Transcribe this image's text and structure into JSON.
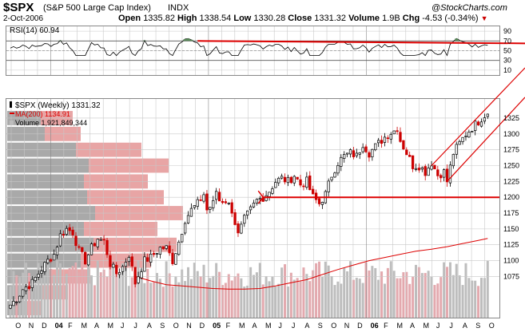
{
  "header": {
    "symbol": "$SPX",
    "name": "(S&P 500 Large Cap Index)",
    "exchange": "INDX",
    "brand": "@StockCharts.com",
    "date": "2-Oct-2006",
    "open_label": "Open",
    "open": "1335.82",
    "high_label": "High",
    "high": "1338.54",
    "low_label": "Low",
    "low": "1330.28",
    "close_label": "Close",
    "close": "1331.32",
    "volume_label": "Volume",
    "volume": "1.9B",
    "chg_label": "Chg",
    "chg": "-4.53 (-0.34%)"
  },
  "colors": {
    "red": "#dd0000",
    "up_candle": "#000000",
    "down_candle": "#cc0000",
    "grid": "#c8c8c8",
    "vbp_up": "#a9a9a9",
    "vbp_down": "#e8a5a5",
    "vol_up": "#bdbdbd",
    "vol_down": "#e3a9ae",
    "rsi_fill": "#5a8a5a"
  },
  "chart_data": [
    {
      "type": "line",
      "panel": "RSI",
      "legend": "RSI(14) 60.94",
      "ylim": [
        0,
        100
      ],
      "y_ticks": [
        10,
        30,
        50,
        70,
        90
      ],
      "reference_lines": [
        30,
        70
      ],
      "trendline": {
        "start_week": 60,
        "start": 70,
        "end_week": 155,
        "end": 65
      },
      "series": [
        {
          "name": "RSI(14)",
          "last": 60.94
        }
      ]
    },
    {
      "type": "line",
      "panel": "Price",
      "legend": [
        "$SPX (Weekly) 1331.32",
        "MA(200) 1134.91",
        "Volume 1,921,849,344"
      ],
      "y_ticks": [
        1075,
        1100,
        1125,
        1150,
        1175,
        1200,
        1225,
        1250,
        1275,
        1300,
        1325
      ],
      "ylim": [
        1010,
        1340
      ],
      "x_months": [
        "O",
        "N",
        "D",
        "04",
        "F",
        "M",
        "A",
        "M",
        "J",
        "J",
        "A",
        "S",
        "O",
        "N",
        "D",
        "05",
        "F",
        "M",
        "A",
        "M",
        "J",
        "J",
        "A",
        "S",
        "O",
        "N",
        "D",
        "06",
        "F",
        "M",
        "A",
        "M",
        "J",
        "J",
        "A",
        "S",
        "O"
      ],
      "x_major_years": [
        "04",
        "05",
        "06"
      ],
      "price_anchors_week_close": [
        [
          0,
          1030
        ],
        [
          2,
          1040
        ],
        [
          4,
          1055
        ],
        [
          7,
          1065
        ],
        [
          9,
          1080
        ],
        [
          12,
          1100
        ],
        [
          14,
          1110
        ],
        [
          16,
          1140
        ],
        [
          18,
          1150
        ],
        [
          20,
          1145
        ],
        [
          22,
          1115
        ],
        [
          24,
          1100
        ],
        [
          26,
          1120
        ],
        [
          28,
          1135
        ],
        [
          30,
          1130
        ],
        [
          32,
          1095
        ],
        [
          34,
          1080
        ],
        [
          36,
          1090
        ],
        [
          38,
          1110
        ],
        [
          40,
          1065
        ],
        [
          43,
          1100
        ],
        [
          45,
          1105
        ],
        [
          48,
          1120
        ],
        [
          50,
          1120
        ],
        [
          52,
          1100
        ],
        [
          54,
          1130
        ],
        [
          56,
          1165
        ],
        [
          58,
          1180
        ],
        [
          60,
          1190
        ],
        [
          62,
          1205
        ],
        [
          63,
          1180
        ],
        [
          65,
          1190
        ],
        [
          66,
          1210
        ],
        [
          67,
          1195
        ],
        [
          69,
          1195
        ],
        [
          71,
          1180
        ],
        [
          73,
          1140
        ],
        [
          75,
          1165
        ],
        [
          77,
          1180
        ],
        [
          79,
          1195
        ],
        [
          81,
          1200
        ],
        [
          83,
          1210
        ],
        [
          85,
          1225
        ],
        [
          87,
          1230
        ],
        [
          89,
          1225
        ],
        [
          91,
          1235
        ],
        [
          93,
          1220
        ],
        [
          95,
          1225
        ],
        [
          97,
          1200
        ],
        [
          99,
          1190
        ],
        [
          101,
          1205
        ],
        [
          103,
          1235
        ],
        [
          105,
          1255
        ],
        [
          107,
          1265
        ],
        [
          109,
          1270
        ],
        [
          111,
          1265
        ],
        [
          113,
          1285
        ],
        [
          115,
          1270
        ],
        [
          117,
          1280
        ],
        [
          119,
          1290
        ],
        [
          121,
          1300
        ],
        [
          123,
          1305
        ],
        [
          124,
          1310
        ],
        [
          125,
          1290
        ],
        [
          127,
          1270
        ],
        [
          129,
          1250
        ],
        [
          131,
          1250
        ],
        [
          133,
          1240
        ],
        [
          135,
          1255
        ],
        [
          137,
          1235
        ],
        [
          139,
          1240
        ],
        [
          140,
          1225
        ],
        [
          142,
          1270
        ],
        [
          144,
          1285
        ],
        [
          146,
          1300
        ],
        [
          148,
          1310
        ],
        [
          150,
          1320
        ],
        [
          152,
          1330
        ],
        [
          153,
          1331
        ]
      ],
      "ma200_anchors_week_value": [
        [
          40,
          1075
        ],
        [
          45,
          1068
        ],
        [
          50,
          1062
        ],
        [
          55,
          1060
        ],
        [
          60,
          1058
        ],
        [
          65,
          1056
        ],
        [
          70,
          1055
        ],
        [
          75,
          1055
        ],
        [
          80,
          1056
        ],
        [
          85,
          1060
        ],
        [
          90,
          1065
        ],
        [
          95,
          1070
        ],
        [
          100,
          1078
        ],
        [
          105,
          1086
        ],
        [
          110,
          1093
        ],
        [
          115,
          1100
        ],
        [
          120,
          1105
        ],
        [
          125,
          1110
        ],
        [
          130,
          1115
        ],
        [
          135,
          1118
        ],
        [
          140,
          1122
        ],
        [
          145,
          1127
        ],
        [
          150,
          1132
        ],
        [
          153,
          1135
        ]
      ],
      "horizontal_line": 1200,
      "wedge": {
        "lower": [
          [
            140,
            1225
          ],
          [
            154,
            1320
          ]
        ],
        "upper": [
          [
            135,
            1250
          ],
          [
            154,
            1335
          ]
        ]
      },
      "volume_by_price": [
        {
          "price": 1325,
          "total": 82,
          "down": 40
        },
        {
          "price": 1300,
          "total": 92,
          "down": 45
        },
        {
          "price": 1275,
          "total": 168,
          "down": 82
        },
        {
          "price": 1250,
          "total": 202,
          "down": 100
        },
        {
          "price": 1225,
          "total": 176,
          "down": 80
        },
        {
          "price": 1200,
          "total": 196,
          "down": 96
        },
        {
          "price": 1175,
          "total": 220,
          "down": 110
        },
        {
          "price": 1150,
          "total": 188,
          "down": 92
        },
        {
          "price": 1125,
          "total": 212,
          "down": 104
        },
        {
          "price": 1100,
          "total": 180,
          "down": 88
        },
        {
          "price": 1075,
          "total": 104,
          "down": 50
        },
        {
          "price": 1050,
          "total": 76,
          "down": 32
        },
        {
          "price": 1025,
          "total": 44,
          "down": 20
        }
      ]
    }
  ]
}
